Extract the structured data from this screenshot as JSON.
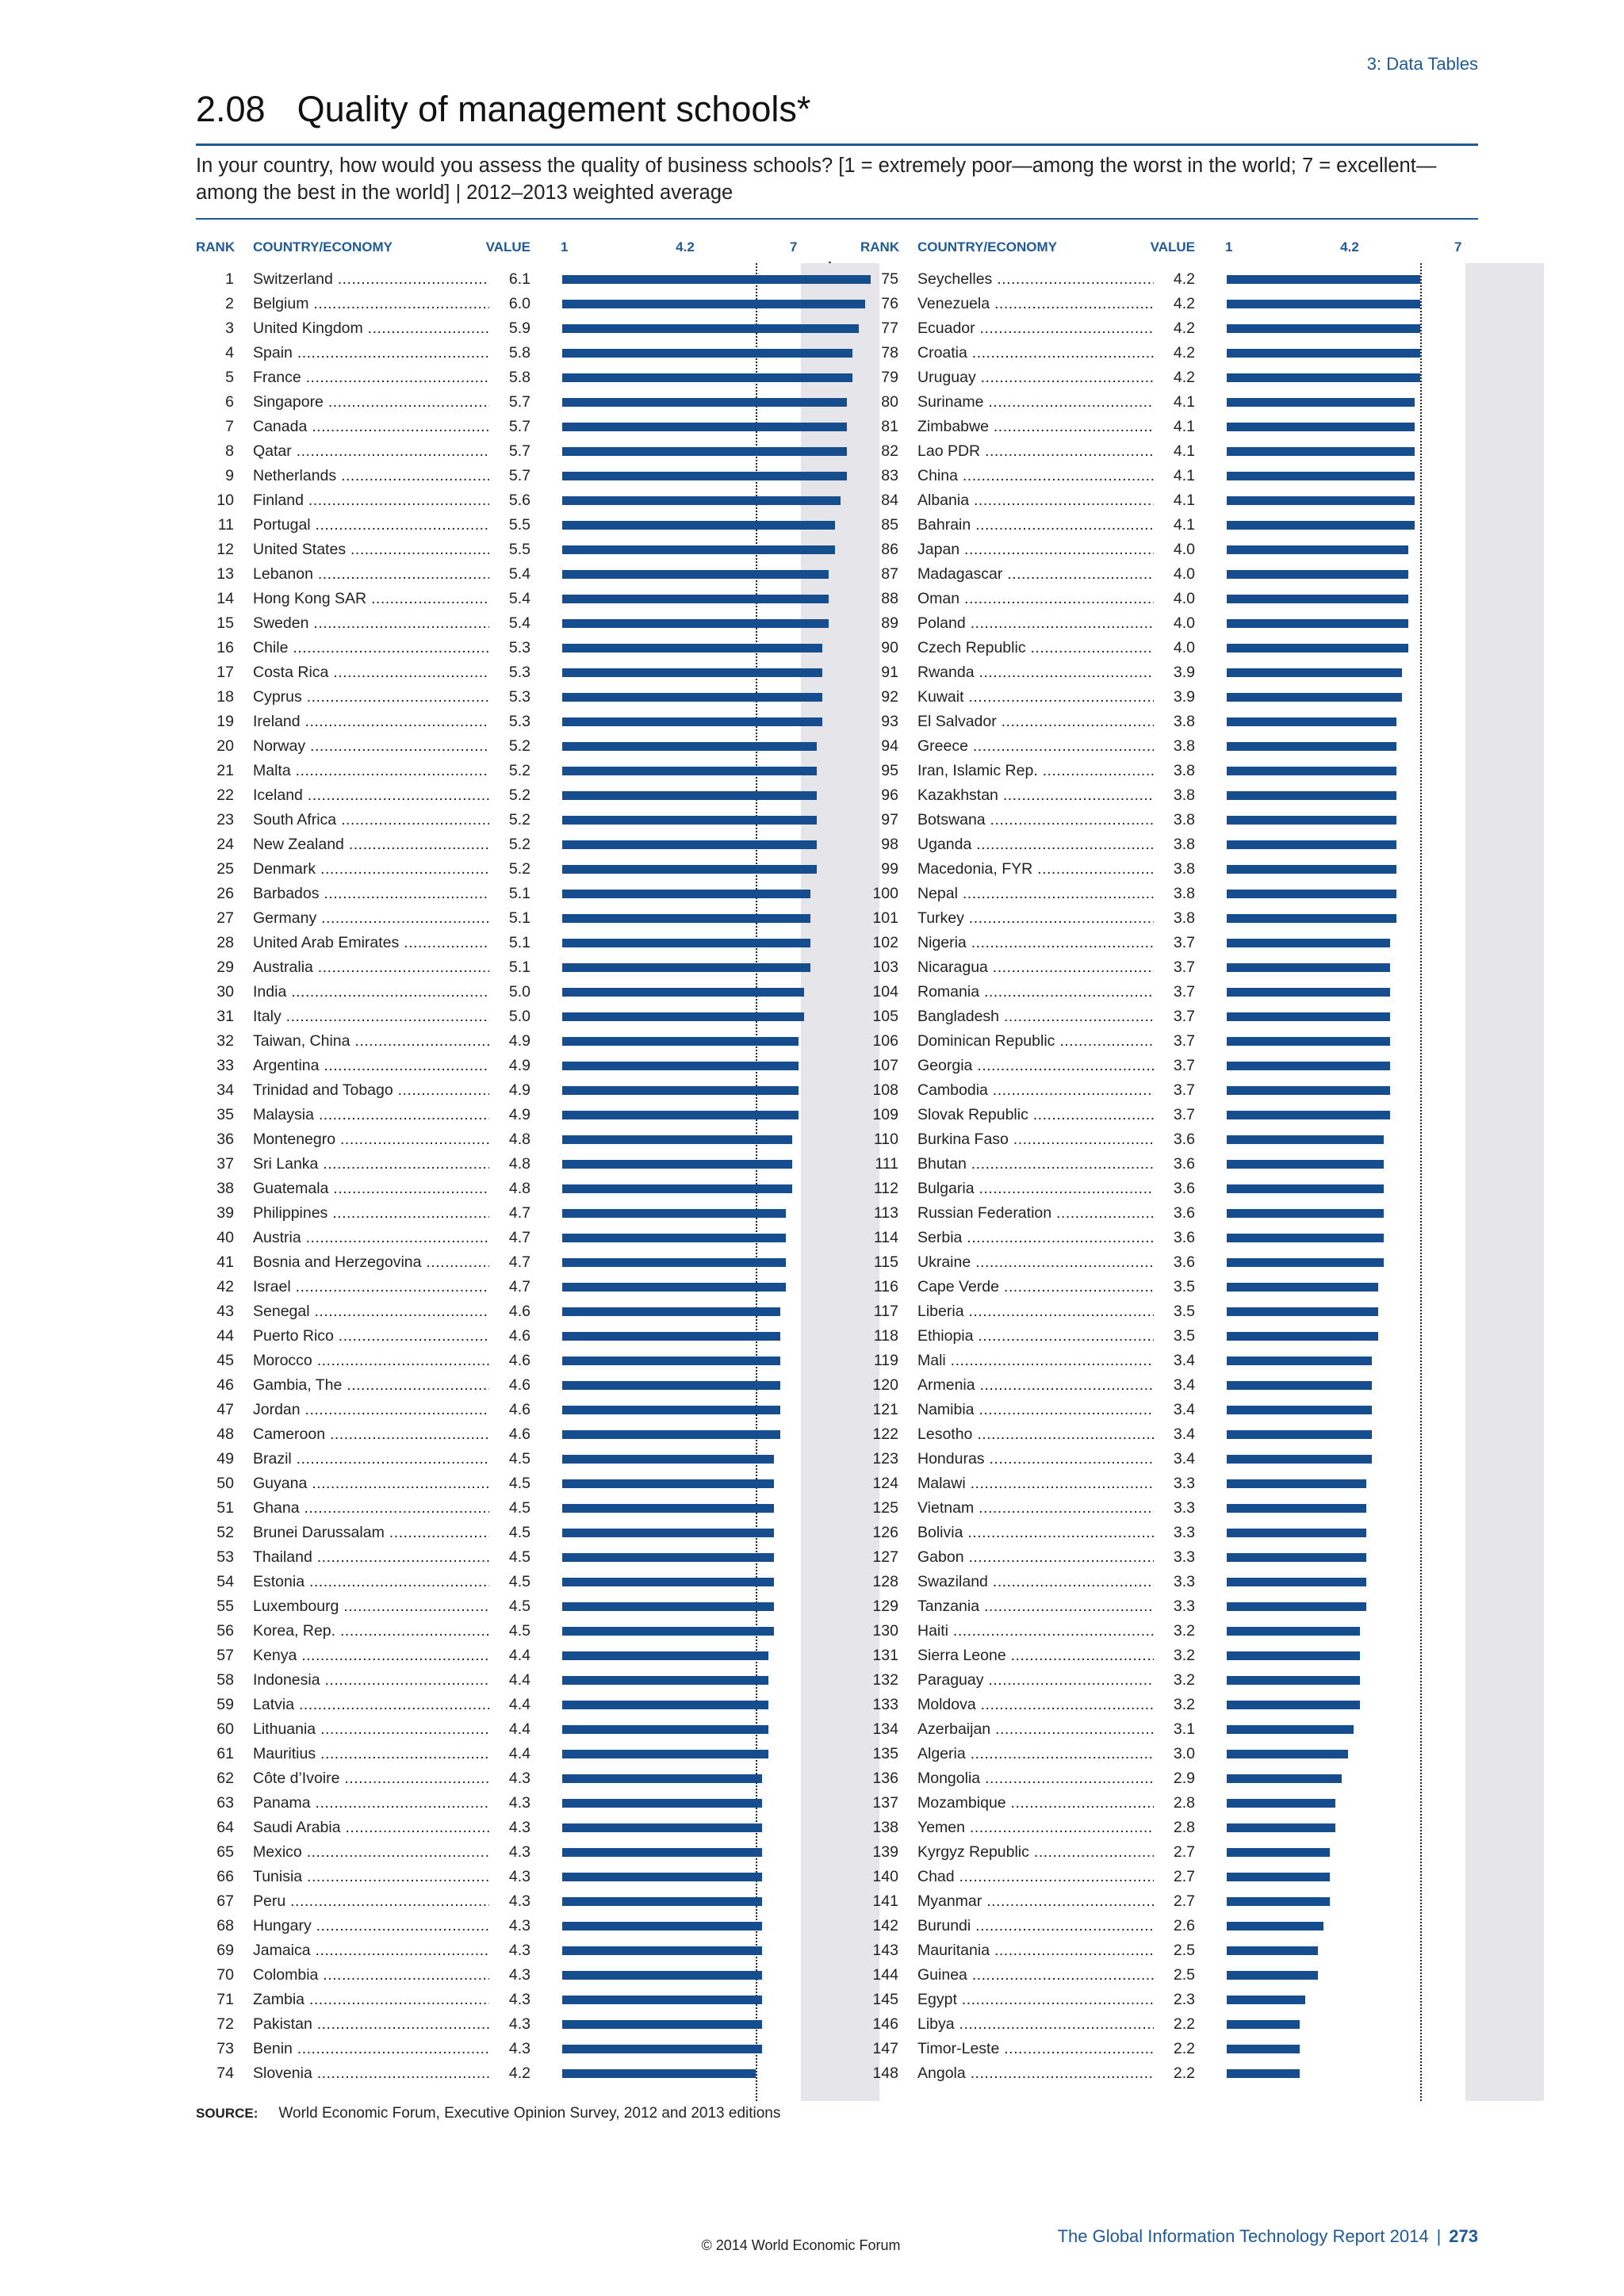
{
  "section_label": "3: Data Tables",
  "title_number": "2.08",
  "title_text": "Quality of management schools*",
  "question": "In your country, how would you assess the quality of business schools? [1 = extremely poor—among the worst in the world; 7 = excellent—among the best in the world] | 2012–2013 weighted average",
  "headers": {
    "rank": "RANK",
    "country": "COUNTRY/ECONOMY",
    "value": "VALUE",
    "tick_min": "1",
    "tick_ref": "4.2",
    "tick_max": "7"
  },
  "colors": {
    "accent": "#1f5a96",
    "bar": "#154d8e",
    "plot_background": "#e6e6ea"
  },
  "chart_data": {
    "type": "bar",
    "orientation": "horizontal",
    "xlim": [
      1,
      7
    ],
    "reference_line": 4.2,
    "rows": [
      {
        "rank": "1",
        "country": "Switzerland",
        "value": "6.1"
      },
      {
        "rank": "2",
        "country": "Belgium",
        "value": "6.0"
      },
      {
        "rank": "3",
        "country": "United Kingdom",
        "value": "5.9"
      },
      {
        "rank": "4",
        "country": "Spain",
        "value": "5.8"
      },
      {
        "rank": "5",
        "country": "France",
        "value": "5.8"
      },
      {
        "rank": "6",
        "country": "Singapore",
        "value": "5.7"
      },
      {
        "rank": "7",
        "country": "Canada",
        "value": "5.7"
      },
      {
        "rank": "8",
        "country": "Qatar",
        "value": "5.7"
      },
      {
        "rank": "9",
        "country": "Netherlands",
        "value": "5.7"
      },
      {
        "rank": "10",
        "country": "Finland",
        "value": "5.6"
      },
      {
        "rank": "11",
        "country": "Portugal",
        "value": "5.5"
      },
      {
        "rank": "12",
        "country": "United States",
        "value": "5.5"
      },
      {
        "rank": "13",
        "country": "Lebanon",
        "value": "5.4"
      },
      {
        "rank": "14",
        "country": "Hong Kong SAR",
        "value": "5.4"
      },
      {
        "rank": "15",
        "country": "Sweden",
        "value": "5.4"
      },
      {
        "rank": "16",
        "country": "Chile",
        "value": "5.3"
      },
      {
        "rank": "17",
        "country": "Costa Rica",
        "value": "5.3"
      },
      {
        "rank": "18",
        "country": "Cyprus",
        "value": "5.3"
      },
      {
        "rank": "19",
        "country": "Ireland",
        "value": "5.3"
      },
      {
        "rank": "20",
        "country": "Norway",
        "value": "5.2"
      },
      {
        "rank": "21",
        "country": "Malta",
        "value": "5.2"
      },
      {
        "rank": "22",
        "country": "Iceland",
        "value": "5.2"
      },
      {
        "rank": "23",
        "country": "South Africa",
        "value": "5.2"
      },
      {
        "rank": "24",
        "country": "New Zealand",
        "value": "5.2"
      },
      {
        "rank": "25",
        "country": "Denmark",
        "value": "5.2"
      },
      {
        "rank": "26",
        "country": "Barbados",
        "value": "5.1"
      },
      {
        "rank": "27",
        "country": "Germany",
        "value": "5.1"
      },
      {
        "rank": "28",
        "country": "United Arab Emirates",
        "value": "5.1"
      },
      {
        "rank": "29",
        "country": "Australia",
        "value": "5.1"
      },
      {
        "rank": "30",
        "country": "India",
        "value": "5.0"
      },
      {
        "rank": "31",
        "country": "Italy",
        "value": "5.0"
      },
      {
        "rank": "32",
        "country": "Taiwan, China",
        "value": "4.9"
      },
      {
        "rank": "33",
        "country": "Argentina",
        "value": "4.9"
      },
      {
        "rank": "34",
        "country": "Trinidad and Tobago",
        "value": "4.9"
      },
      {
        "rank": "35",
        "country": "Malaysia",
        "value": "4.9"
      },
      {
        "rank": "36",
        "country": "Montenegro",
        "value": "4.8"
      },
      {
        "rank": "37",
        "country": "Sri Lanka",
        "value": "4.8"
      },
      {
        "rank": "38",
        "country": "Guatemala",
        "value": "4.8"
      },
      {
        "rank": "39",
        "country": "Philippines",
        "value": "4.7"
      },
      {
        "rank": "40",
        "country": "Austria",
        "value": "4.7"
      },
      {
        "rank": "41",
        "country": "Bosnia and Herzegovina",
        "value": "4.7"
      },
      {
        "rank": "42",
        "country": "Israel",
        "value": "4.7"
      },
      {
        "rank": "43",
        "country": "Senegal",
        "value": "4.6"
      },
      {
        "rank": "44",
        "country": "Puerto Rico",
        "value": "4.6"
      },
      {
        "rank": "45",
        "country": "Morocco",
        "value": "4.6"
      },
      {
        "rank": "46",
        "country": "Gambia, The",
        "value": "4.6"
      },
      {
        "rank": "47",
        "country": "Jordan",
        "value": "4.6"
      },
      {
        "rank": "48",
        "country": "Cameroon",
        "value": "4.6"
      },
      {
        "rank": "49",
        "country": "Brazil",
        "value": "4.5"
      },
      {
        "rank": "50",
        "country": "Guyana",
        "value": "4.5"
      },
      {
        "rank": "51",
        "country": "Ghana",
        "value": "4.5"
      },
      {
        "rank": "52",
        "country": "Brunei Darussalam",
        "value": "4.5"
      },
      {
        "rank": "53",
        "country": "Thailand",
        "value": "4.5"
      },
      {
        "rank": "54",
        "country": "Estonia",
        "value": "4.5"
      },
      {
        "rank": "55",
        "country": "Luxembourg",
        "value": "4.5"
      },
      {
        "rank": "56",
        "country": "Korea, Rep.",
        "value": "4.5"
      },
      {
        "rank": "57",
        "country": "Kenya",
        "value": "4.4"
      },
      {
        "rank": "58",
        "country": "Indonesia",
        "value": "4.4"
      },
      {
        "rank": "59",
        "country": "Latvia",
        "value": "4.4"
      },
      {
        "rank": "60",
        "country": "Lithuania",
        "value": "4.4"
      },
      {
        "rank": "61",
        "country": "Mauritius",
        "value": "4.4"
      },
      {
        "rank": "62",
        "country": "Côte d’Ivoire",
        "value": "4.3"
      },
      {
        "rank": "63",
        "country": "Panama",
        "value": "4.3"
      },
      {
        "rank": "64",
        "country": "Saudi Arabia",
        "value": "4.3"
      },
      {
        "rank": "65",
        "country": "Mexico",
        "value": "4.3"
      },
      {
        "rank": "66",
        "country": "Tunisia",
        "value": "4.3"
      },
      {
        "rank": "67",
        "country": "Peru",
        "value": "4.3"
      },
      {
        "rank": "68",
        "country": "Hungary",
        "value": "4.3"
      },
      {
        "rank": "69",
        "country": "Jamaica",
        "value": "4.3"
      },
      {
        "rank": "70",
        "country": "Colombia",
        "value": "4.3"
      },
      {
        "rank": "71",
        "country": "Zambia",
        "value": "4.3"
      },
      {
        "rank": "72",
        "country": "Pakistan",
        "value": "4.3"
      },
      {
        "rank": "73",
        "country": "Benin",
        "value": "4.3"
      },
      {
        "rank": "74",
        "country": "Slovenia",
        "value": "4.2"
      },
      {
        "rank": "75",
        "country": "Seychelles",
        "value": "4.2"
      },
      {
        "rank": "76",
        "country": "Venezuela",
        "value": "4.2"
      },
      {
        "rank": "77",
        "country": "Ecuador",
        "value": "4.2"
      },
      {
        "rank": "78",
        "country": "Croatia",
        "value": "4.2"
      },
      {
        "rank": "79",
        "country": "Uruguay",
        "value": "4.2"
      },
      {
        "rank": "80",
        "country": "Suriname",
        "value": "4.1"
      },
      {
        "rank": "81",
        "country": "Zimbabwe",
        "value": "4.1"
      },
      {
        "rank": "82",
        "country": "Lao PDR",
        "value": "4.1"
      },
      {
        "rank": "83",
        "country": "China",
        "value": "4.1"
      },
      {
        "rank": "84",
        "country": "Albania",
        "value": "4.1"
      },
      {
        "rank": "85",
        "country": "Bahrain",
        "value": "4.1"
      },
      {
        "rank": "86",
        "country": "Japan",
        "value": "4.0"
      },
      {
        "rank": "87",
        "country": "Madagascar",
        "value": "4.0"
      },
      {
        "rank": "88",
        "country": "Oman",
        "value": "4.0"
      },
      {
        "rank": "89",
        "country": "Poland",
        "value": "4.0"
      },
      {
        "rank": "90",
        "country": "Czech Republic",
        "value": "4.0"
      },
      {
        "rank": "91",
        "country": "Rwanda",
        "value": "3.9"
      },
      {
        "rank": "92",
        "country": "Kuwait",
        "value": "3.9"
      },
      {
        "rank": "93",
        "country": "El Salvador",
        "value": "3.8"
      },
      {
        "rank": "94",
        "country": "Greece",
        "value": "3.8"
      },
      {
        "rank": "95",
        "country": "Iran, Islamic Rep.",
        "value": "3.8"
      },
      {
        "rank": "96",
        "country": "Kazakhstan",
        "value": "3.8"
      },
      {
        "rank": "97",
        "country": "Botswana",
        "value": "3.8"
      },
      {
        "rank": "98",
        "country": "Uganda",
        "value": "3.8"
      },
      {
        "rank": "99",
        "country": "Macedonia, FYR",
        "value": "3.8"
      },
      {
        "rank": "100",
        "country": "Nepal",
        "value": "3.8"
      },
      {
        "rank": "101",
        "country": "Turkey",
        "value": "3.8"
      },
      {
        "rank": "102",
        "country": "Nigeria",
        "value": "3.7"
      },
      {
        "rank": "103",
        "country": "Nicaragua",
        "value": "3.7"
      },
      {
        "rank": "104",
        "country": "Romania",
        "value": "3.7"
      },
      {
        "rank": "105",
        "country": "Bangladesh",
        "value": "3.7"
      },
      {
        "rank": "106",
        "country": "Dominican Republic",
        "value": "3.7"
      },
      {
        "rank": "107",
        "country": "Georgia",
        "value": "3.7"
      },
      {
        "rank": "108",
        "country": "Cambodia",
        "value": "3.7"
      },
      {
        "rank": "109",
        "country": "Slovak Republic",
        "value": "3.7"
      },
      {
        "rank": "110",
        "country": "Burkina Faso",
        "value": "3.6"
      },
      {
        "rank": "111",
        "country": "Bhutan",
        "value": "3.6"
      },
      {
        "rank": "112",
        "country": "Bulgaria",
        "value": "3.6"
      },
      {
        "rank": "113",
        "country": "Russian Federation",
        "value": "3.6"
      },
      {
        "rank": "114",
        "country": "Serbia",
        "value": "3.6"
      },
      {
        "rank": "115",
        "country": "Ukraine",
        "value": "3.6"
      },
      {
        "rank": "116",
        "country": "Cape Verde",
        "value": "3.5"
      },
      {
        "rank": "117",
        "country": "Liberia",
        "value": "3.5"
      },
      {
        "rank": "118",
        "country": "Ethiopia",
        "value": "3.5"
      },
      {
        "rank": "119",
        "country": "Mali",
        "value": "3.4"
      },
      {
        "rank": "120",
        "country": "Armenia",
        "value": "3.4"
      },
      {
        "rank": "121",
        "country": "Namibia",
        "value": "3.4"
      },
      {
        "rank": "122",
        "country": "Lesotho",
        "value": "3.4"
      },
      {
        "rank": "123",
        "country": "Honduras",
        "value": "3.4"
      },
      {
        "rank": "124",
        "country": "Malawi",
        "value": "3.3"
      },
      {
        "rank": "125",
        "country": "Vietnam",
        "value": "3.3"
      },
      {
        "rank": "126",
        "country": "Bolivia",
        "value": "3.3"
      },
      {
        "rank": "127",
        "country": "Gabon",
        "value": "3.3"
      },
      {
        "rank": "128",
        "country": "Swaziland",
        "value": "3.3"
      },
      {
        "rank": "129",
        "country": "Tanzania",
        "value": "3.3"
      },
      {
        "rank": "130",
        "country": "Haiti",
        "value": "3.2"
      },
      {
        "rank": "131",
        "country": "Sierra Leone",
        "value": "3.2"
      },
      {
        "rank": "132",
        "country": "Paraguay",
        "value": "3.2"
      },
      {
        "rank": "133",
        "country": "Moldova",
        "value": "3.2"
      },
      {
        "rank": "134",
        "country": "Azerbaijan",
        "value": "3.1"
      },
      {
        "rank": "135",
        "country": "Algeria",
        "value": "3.0"
      },
      {
        "rank": "136",
        "country": "Mongolia",
        "value": "2.9"
      },
      {
        "rank": "137",
        "country": "Mozambique",
        "value": "2.8"
      },
      {
        "rank": "138",
        "country": "Yemen",
        "value": "2.8"
      },
      {
        "rank": "139",
        "country": "Kyrgyz Republic",
        "value": "2.7"
      },
      {
        "rank": "140",
        "country": "Chad",
        "value": "2.7"
      },
      {
        "rank": "141",
        "country": "Myanmar",
        "value": "2.7"
      },
      {
        "rank": "142",
        "country": "Burundi",
        "value": "2.6"
      },
      {
        "rank": "143",
        "country": "Mauritania",
        "value": "2.5"
      },
      {
        "rank": "144",
        "country": "Guinea",
        "value": "2.5"
      },
      {
        "rank": "145",
        "country": "Egypt",
        "value": "2.3"
      },
      {
        "rank": "146",
        "country": "Libya",
        "value": "2.2"
      },
      {
        "rank": "147",
        "country": "Timor-Leste",
        "value": "2.2"
      },
      {
        "rank": "148",
        "country": "Angola",
        "value": "2.2"
      }
    ]
  },
  "source_label": "SOURCE:",
  "source_text": "World Economic Forum, Executive Opinion Survey, 2012 and 2013 editions",
  "footer": {
    "report": "The Global Information Technology Report 2014",
    "separator": "|",
    "page": "273",
    "copyright": "© 2014 World Economic Forum"
  }
}
